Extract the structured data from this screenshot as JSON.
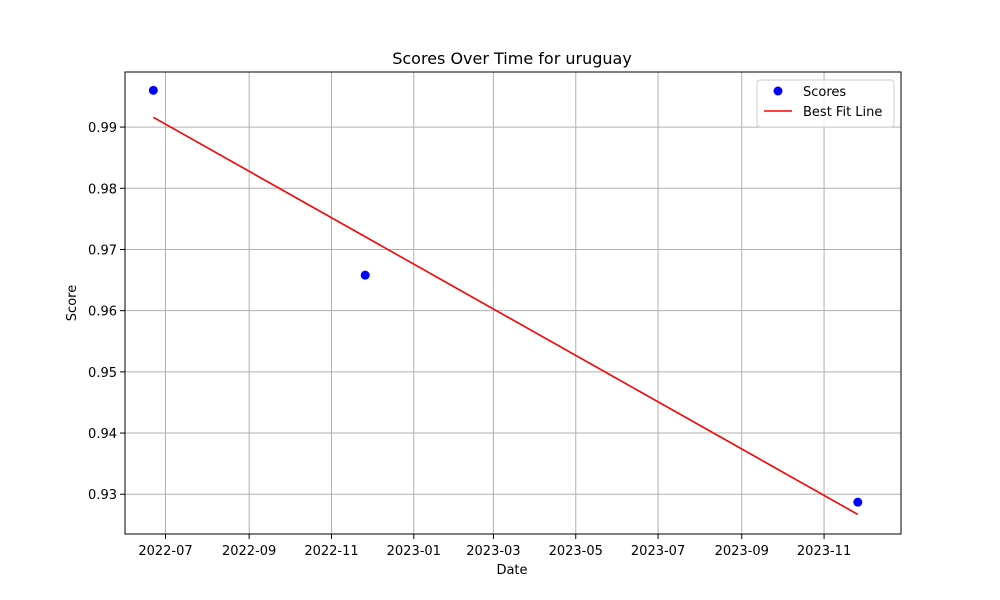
{
  "chart_data": {
    "type": "scatter",
    "title": "Scores Over Time for uruguay",
    "xlabel": "Date",
    "ylabel": "Score",
    "x_is_date": true,
    "xlim": [
      "2022-06-01",
      "2023-12-28"
    ],
    "ylim": [
      0.9235,
      0.999
    ],
    "x_ticks": [
      "2022-07-01",
      "2022-09-01",
      "2022-11-01",
      "2023-01-01",
      "2023-03-01",
      "2023-05-01",
      "2023-07-01",
      "2023-09-01",
      "2023-11-01"
    ],
    "x_tick_labels": [
      "2022-07",
      "2022-09",
      "2022-11",
      "2023-01",
      "2023-03",
      "2023-05",
      "2023-07",
      "2023-09",
      "2023-11"
    ],
    "y_ticks": [
      0.93,
      0.94,
      0.95,
      0.96,
      0.97,
      0.98,
      0.99
    ],
    "y_tick_labels": [
      "0.93",
      "0.94",
      "0.95",
      "0.96",
      "0.97",
      "0.98",
      "0.99"
    ],
    "grid": true,
    "legend_position": "top-right",
    "series": [
      {
        "name": "Scores",
        "kind": "scatter",
        "color": "#0000ff",
        "x": [
          "2022-06-22",
          "2022-11-26",
          "2023-11-26"
        ],
        "y": [
          0.996,
          0.9658,
          0.9287
        ]
      },
      {
        "name": "Best Fit Line",
        "kind": "line",
        "color": "#ff0000",
        "x": [
          "2022-06-22",
          "2023-11-26"
        ],
        "y": [
          0.9916,
          0.9267
        ]
      }
    ]
  }
}
